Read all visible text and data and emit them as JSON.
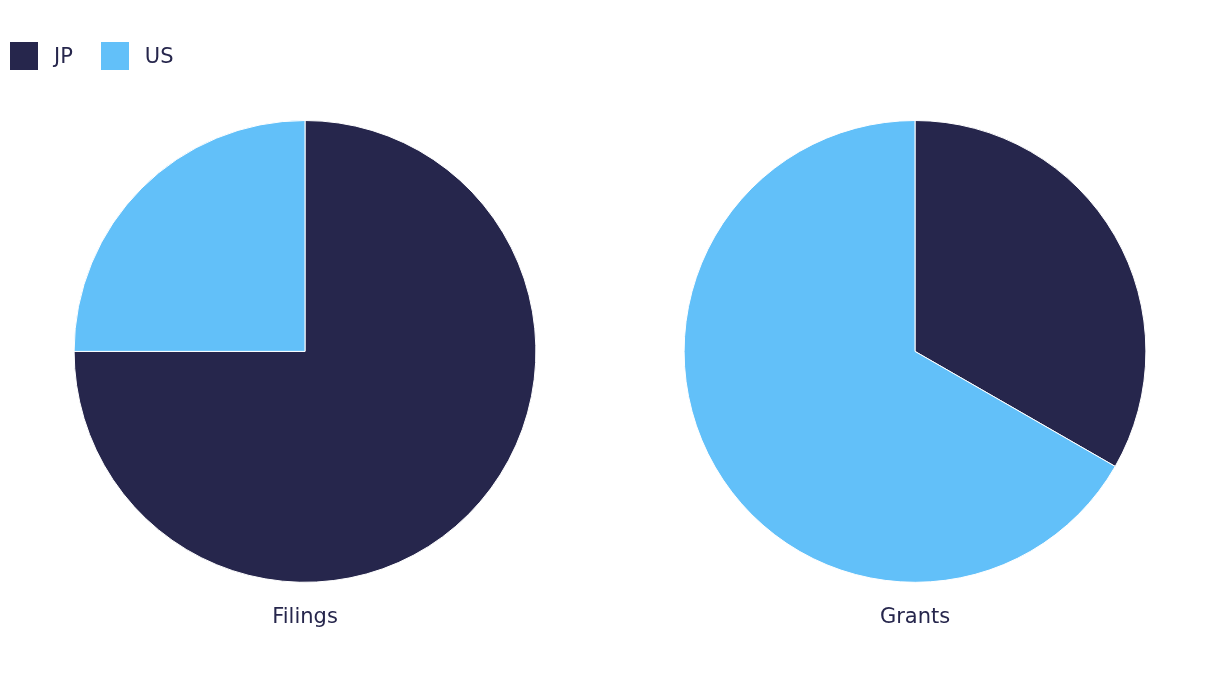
{
  "chart_data": [
    {
      "type": "pie",
      "title": "Filings",
      "categories": [
        "JP",
        "US"
      ],
      "values": [
        75,
        25
      ],
      "colors": [
        "#26264c",
        "#62c0f9"
      ],
      "legend": "top left"
    },
    {
      "type": "pie",
      "title": "Grants",
      "categories": [
        null,
        null
      ],
      "values": [
        33.3,
        66.7
      ],
      "colors": [
        "#26264c",
        "#62c0f9"
      ]
    }
  ]
}
